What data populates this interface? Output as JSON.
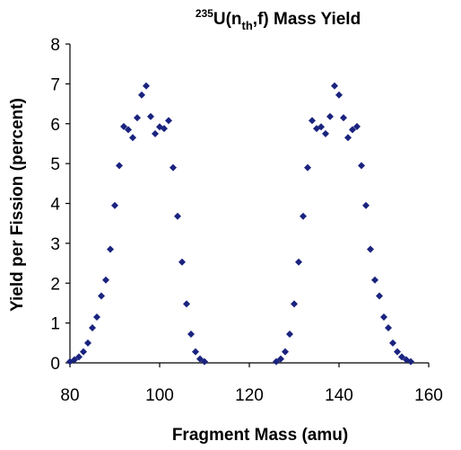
{
  "chart_data": {
    "type": "scatter",
    "title": {
      "superscript": "235",
      "main_before": "U(n",
      "subscript": "th",
      "main_after": ",f) Mass Yield"
    },
    "xlabel": "Fragment Mass (amu)",
    "ylabel": "Yield per Fission (percent)",
    "xlim": [
      80,
      160
    ],
    "ylim": [
      0,
      8
    ],
    "xticks": [
      80,
      100,
      120,
      140,
      160
    ],
    "yticks": [
      0,
      1,
      2,
      3,
      4,
      5,
      6,
      7,
      8
    ],
    "marker_color": "#1a237e",
    "marker_shape": "diamond",
    "grid": false,
    "legend": "none",
    "series": [
      {
        "points": [
          [
            80,
            0.03
          ],
          [
            81,
            0.08
          ],
          [
            82,
            0.15
          ],
          [
            83,
            0.28
          ],
          [
            84,
            0.5
          ],
          [
            85,
            0.88
          ],
          [
            86,
            1.15
          ],
          [
            87,
            1.68
          ],
          [
            88,
            2.08
          ],
          [
            89,
            2.85
          ],
          [
            90,
            3.95
          ],
          [
            91,
            4.95
          ],
          [
            92,
            5.93
          ],
          [
            93,
            5.85
          ],
          [
            94,
            5.65
          ],
          [
            95,
            6.15
          ],
          [
            96,
            6.72
          ],
          [
            97,
            6.95
          ],
          [
            98,
            6.18
          ],
          [
            99,
            5.75
          ],
          [
            100,
            5.92
          ],
          [
            101,
            5.88
          ],
          [
            102,
            6.08
          ],
          [
            103,
            4.9
          ],
          [
            104,
            3.68
          ],
          [
            105,
            2.53
          ],
          [
            106,
            1.48
          ],
          [
            107,
            0.72
          ],
          [
            108,
            0.28
          ],
          [
            109,
            0.1
          ],
          [
            110,
            0.03
          ],
          [
            126,
            0.03
          ],
          [
            127,
            0.1
          ],
          [
            128,
            0.28
          ],
          [
            129,
            0.72
          ],
          [
            130,
            1.48
          ],
          [
            131,
            2.53
          ],
          [
            132,
            3.68
          ],
          [
            133,
            4.9
          ],
          [
            134,
            6.08
          ],
          [
            135,
            5.88
          ],
          [
            136,
            5.92
          ],
          [
            137,
            5.75
          ],
          [
            138,
            6.18
          ],
          [
            139,
            6.95
          ],
          [
            140,
            6.72
          ],
          [
            141,
            6.15
          ],
          [
            142,
            5.65
          ],
          [
            143,
            5.85
          ],
          [
            144,
            5.93
          ],
          [
            145,
            4.95
          ],
          [
            146,
            3.95
          ],
          [
            147,
            2.85
          ],
          [
            148,
            2.08
          ],
          [
            149,
            1.68
          ],
          [
            150,
            1.15
          ],
          [
            151,
            0.88
          ],
          [
            152,
            0.5
          ],
          [
            153,
            0.28
          ],
          [
            154,
            0.15
          ],
          [
            155,
            0.08
          ],
          [
            156,
            0.03
          ]
        ]
      }
    ]
  }
}
